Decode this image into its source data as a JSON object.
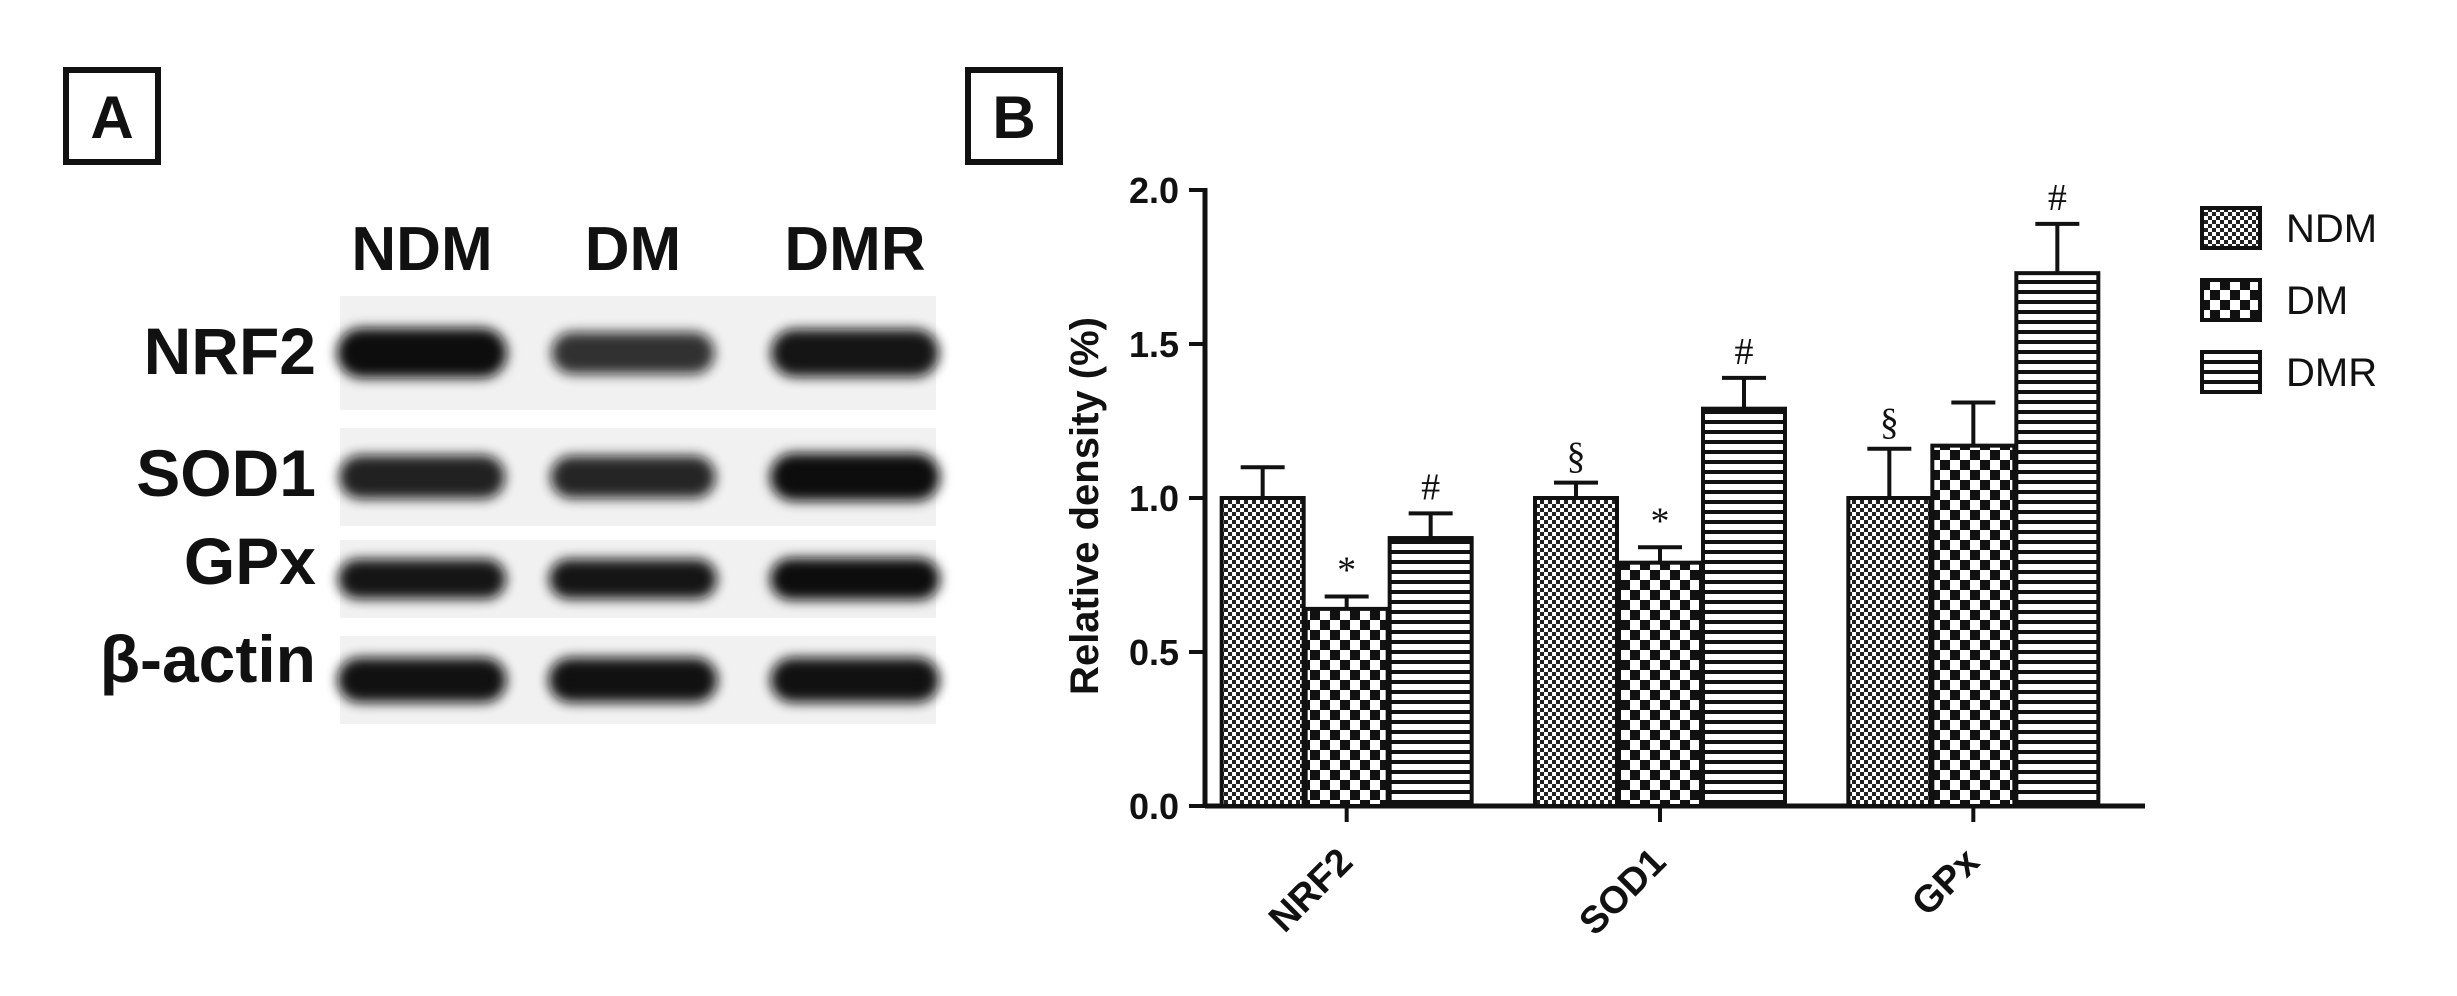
{
  "panel_a": {
    "label": "A",
    "lane_labels": [
      "NDM",
      "DM",
      "DMR"
    ],
    "blots": [
      {
        "name": "NRF2",
        "intensity": [
          1.0,
          0.65,
          0.9
        ]
      },
      {
        "name": "SOD1",
        "intensity": [
          0.8,
          0.75,
          1.0
        ]
      },
      {
        "name": "GPx",
        "intensity": [
          0.9,
          0.9,
          1.0
        ]
      },
      {
        "name": "β-actin",
        "intensity": [
          0.95,
          0.95,
          0.95
        ]
      }
    ]
  },
  "panel_b": {
    "label": "B"
  },
  "colors": {
    "text": "#111111",
    "bar_fill": "#ffffff",
    "band": "#0a0a0a"
  },
  "chart_data": {
    "type": "bar",
    "categories": [
      "NRF2",
      "SOD1",
      "GPx"
    ],
    "ylabel": "Relative density (%)",
    "xlabel": "",
    "ylim": [
      0,
      2.0
    ],
    "yticks": [
      "0.0",
      "0.5",
      "1.0",
      "1.5",
      "2.0"
    ],
    "legend_position": "right",
    "series": [
      {
        "name": "NDM",
        "pattern": "fine-checker",
        "values": [
          1.0,
          1.0,
          1.0
        ],
        "errors": [
          0.1,
          0.05,
          0.16
        ],
        "marks": [
          "",
          "§",
          "§"
        ]
      },
      {
        "name": "DM",
        "pattern": "coarse-checker",
        "values": [
          0.64,
          0.79,
          1.17
        ],
        "errors": [
          0.04,
          0.05,
          0.14
        ],
        "marks": [
          "*",
          "*",
          ""
        ]
      },
      {
        "name": "DMR",
        "pattern": "horizontal-stripes",
        "values": [
          0.87,
          1.29,
          1.73
        ],
        "errors": [
          0.08,
          0.1,
          0.16
        ],
        "marks": [
          "#",
          "#",
          "#"
        ]
      }
    ]
  }
}
